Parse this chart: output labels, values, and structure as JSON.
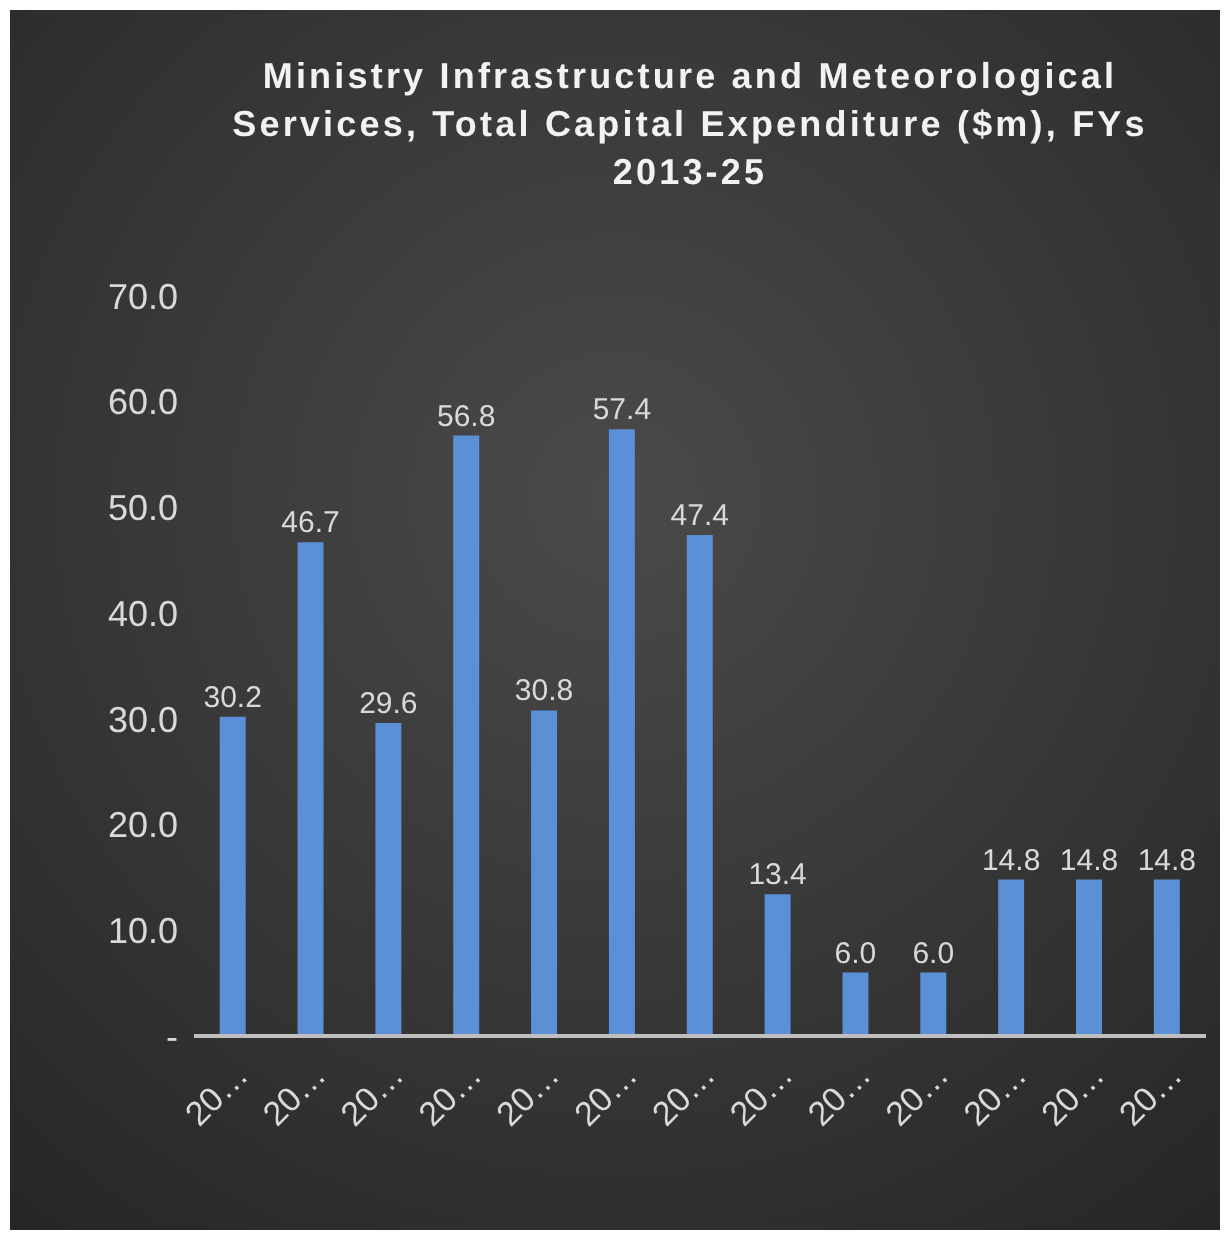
{
  "chart_data": {
    "type": "bar",
    "title": "Ministry Infrastructure and Meteorological Services, Total Capital Expenditure ($m), FYs 2013-25",
    "categories": [
      "20…",
      "20…",
      "20…",
      "20…",
      "20…",
      "20…",
      "20…",
      "20…",
      "20…",
      "20…",
      "20…",
      "20…",
      "20…"
    ],
    "values": [
      30.2,
      46.7,
      29.6,
      56.8,
      30.8,
      57.4,
      47.4,
      13.4,
      6.0,
      6.0,
      14.8,
      14.8,
      14.8
    ],
    "value_labels": [
      "30.2",
      "46.7",
      "29.6",
      "56.8",
      "30.8",
      "57.4",
      "47.4",
      "13.4",
      "6.0",
      "6.0",
      "14.8",
      "14.8",
      "14.8"
    ],
    "color": "#5b8fd6",
    "ylim": [
      0,
      70
    ],
    "yticks": [
      {
        "value": 0,
        "label": "-"
      },
      {
        "value": 10,
        "label": "10.0"
      },
      {
        "value": 20,
        "label": "20.0"
      },
      {
        "value": 30,
        "label": "30.0"
      },
      {
        "value": 40,
        "label": "40.0"
      },
      {
        "value": 50,
        "label": "50.0"
      },
      {
        "value": 60,
        "label": "60.0"
      },
      {
        "value": 70,
        "label": "70.0"
      }
    ],
    "grid": false,
    "legend": false
  }
}
